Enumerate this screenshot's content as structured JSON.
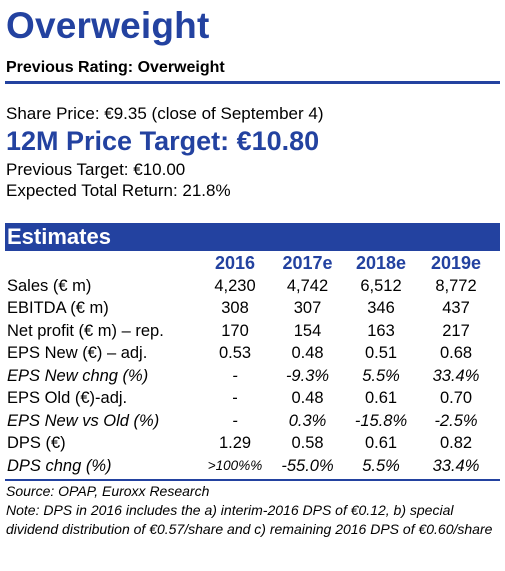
{
  "rating": "Overweight",
  "previous_rating": "Previous Rating: Overweight",
  "share_price": "Share Price: €9.35 (close of September 4)",
  "price_target": "12M Price Target: €10.80",
  "previous_target": "Previous Target: €10.00",
  "expected_return": "Expected Total Return: 21.8%",
  "estimates": {
    "title": "Estimates",
    "columns": [
      "2016",
      "2017e",
      "2018e",
      "2019e"
    ],
    "rows": [
      {
        "label": "Sales (€ m)",
        "values": [
          "4,230",
          "4,742",
          "6,512",
          "8,772"
        ]
      },
      {
        "label": "EBITDA (€ m)",
        "values": [
          "308",
          "307",
          "346",
          "437"
        ]
      },
      {
        "label": "Net profit (€ m) – rep.",
        "values": [
          "170",
          "154",
          "163",
          "217"
        ]
      },
      {
        "label": "EPS New (€) – adj.",
        "values": [
          "0.53",
          "0.48",
          "0.51",
          "0.68"
        ]
      },
      {
        "label": "EPS New chng (%)",
        "values": [
          "-",
          "-9.3%",
          "5.5%",
          "33.4%"
        ]
      },
      {
        "label": "EPS Old (€)-adj.",
        "values": [
          "-",
          "0.48",
          "0.61",
          "0.70"
        ]
      },
      {
        "label": "EPS New vs Old (%)",
        "values": [
          "-",
          "0.3%",
          "-15.8%",
          "-2.5%"
        ]
      },
      {
        "label": "DPS (€)",
        "values": [
          "1.29",
          "0.58",
          "0.61",
          "0.82"
        ]
      },
      {
        "label": "DPS chng (%)",
        "values": [
          ">100%%",
          "-55.0%",
          "5.5%",
          "33.4%"
        ]
      }
    ]
  },
  "source": "Source: OPAP, Euroxx Research",
  "note": "Note: DPS in 2016 includes the a) interim-2016 DPS of €0.12, b) special dividend distribution of €0.57/share and c) remaining 2016 DPS of €0.60/share"
}
